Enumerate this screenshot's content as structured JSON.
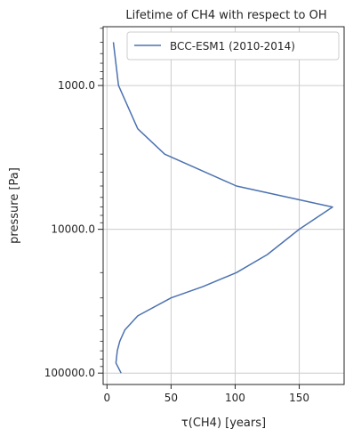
{
  "chart_data": {
    "type": "line",
    "title": "Lifetime of CH4 with respect to OH",
    "xlabel": "τ(CH4) [years]",
    "ylabel": "pressure [Pa]",
    "xlim": [
      -3,
      185
    ],
    "ylim": [
      120000,
      390
    ],
    "y_scale": "log",
    "y_inverted": true,
    "x_ticks": [
      0,
      50,
      100,
      150
    ],
    "x_tick_labels": [
      "0",
      "50",
      "100",
      "150"
    ],
    "y_ticks": [
      1000,
      10000,
      100000
    ],
    "y_tick_labels": [
      "1000.0",
      "10000.0",
      "100000.0"
    ],
    "grid": true,
    "legend_position": "top-right",
    "series": [
      {
        "name": "BCC-ESM1 (2010-2014)",
        "color": "#4c72b0",
        "x": [
          5,
          9,
          24,
          45,
          101,
          176,
          150,
          125,
          101,
          75,
          50,
          24,
          14,
          10,
          8,
          7,
          11
        ],
        "y": [
          500,
          1000,
          2000,
          3000,
          5000,
          7000,
          10000,
          15000,
          20000,
          25000,
          30000,
          40000,
          50000,
          60000,
          70000,
          85000,
          100000
        ]
      }
    ]
  }
}
